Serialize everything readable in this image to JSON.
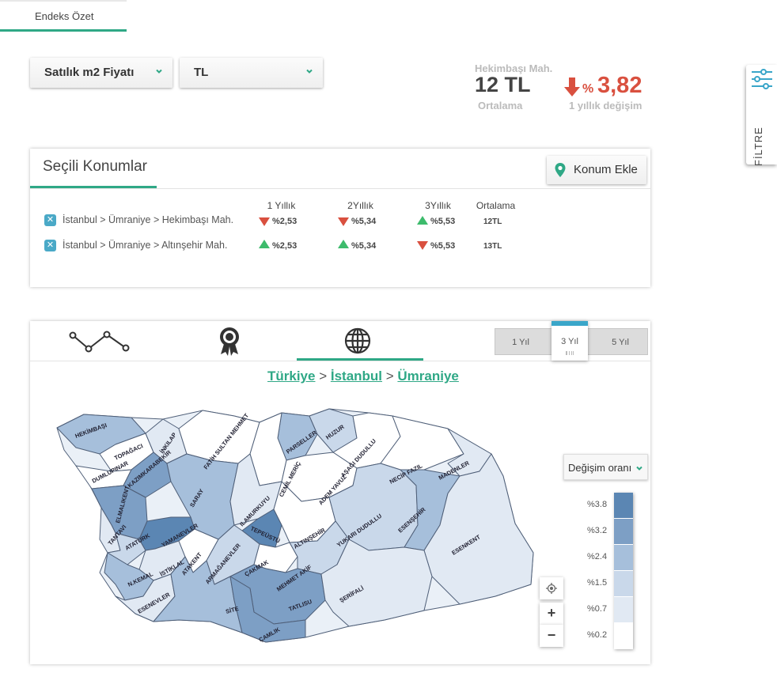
{
  "top_tab": {
    "label": "Endeks Özet"
  },
  "filters": {
    "metric_select": "Satılık m2 Fiyatı",
    "currency_select": "TL"
  },
  "summary": {
    "location": "Hekimbaşı Mah.",
    "price": "12 TL",
    "price_caption": "Ortalama",
    "change_prefix": "%",
    "change_value": "3,82",
    "change_caption": "1 yıllık değişim",
    "change_color": "#d9503f"
  },
  "side_filter": {
    "label": "FİLTRE",
    "icon": "sliders-icon"
  },
  "selected": {
    "title": "Seçili Konumlar",
    "add_button": "Konum Ekle",
    "columns": [
      "1 Yıllık",
      "2Yıllık",
      "3Yıllık",
      "Ortalama"
    ],
    "rows": [
      {
        "label": "İstanbul > Ümraniye > Hekimbaşı Mah.",
        "v1": "%2,53",
        "d1": "down",
        "v2": "%5,34",
        "d2": "down",
        "v3": "%5,53",
        "d3": "up",
        "avg": "12TL"
      },
      {
        "label": "İstanbul > Ümraniye > Altınşehir Mah.",
        "v1": "%2,53",
        "d1": "up",
        "v2": "%5,34",
        "d2": "up",
        "v3": "%5,53",
        "d3": "down",
        "avg": "13TL"
      }
    ],
    "up_color": "#3dbb6c",
    "down_color": "#d9503f"
  },
  "map_panel": {
    "tabs": [
      "line-chart-icon",
      "award-icon",
      "globe-icon"
    ],
    "year_buttons": [
      "1 Yıl",
      "3 Yıl",
      "5 Yıl"
    ],
    "active_year": "3 Yıl",
    "breadcrumb": [
      "Türkiye",
      "İstanbul",
      "Ümraniye"
    ],
    "dropdown": "Değişim oranı",
    "legend": [
      "%3.8",
      "%3.2",
      "%2.4",
      "%1.5",
      "%0.7",
      "%0.2"
    ],
    "legend_colors": [
      "#5b86b3",
      "#7d9fc5",
      "#a6bfdb",
      "#c9d8ea",
      "#e1e9f3",
      "#ffffff"
    ],
    "zoom_in": "+",
    "zoom_out": "−",
    "districts": [
      "HEKİMBAŞI",
      "TOPAĞACI",
      "İNKILAP",
      "DUMLUPINAR",
      "KAZIMKARABEKİR",
      "ELMALIKENT",
      "FATİH SULTAN MEHMET",
      "SARAY",
      "PARSELLER",
      "HUZUR",
      "AŞAĞI DUDULLU",
      "CEMİL MERİÇ",
      "ADEM YAVUZ",
      "NECİP FAZIL",
      "MADENLER",
      "ILAMURKUYU",
      "TEPEÜSTÜ",
      "ALTINŞEHİR",
      "YUKARI DUDULLU",
      "ESENŞEHİR",
      "ESENKENT",
      "TANTAVI",
      "ATATÜRK",
      "YAMANEVLER",
      "İSTİKLAL",
      "ATAKENT",
      "ARMAĞANEVLER",
      "ÇAKMAK",
      "MEHMET AKİF",
      "N.KEMAL",
      "ESENEVLER",
      "SİTE",
      "TATLISU",
      "ŞERİFALİ",
      "ÇAMLIK"
    ]
  }
}
